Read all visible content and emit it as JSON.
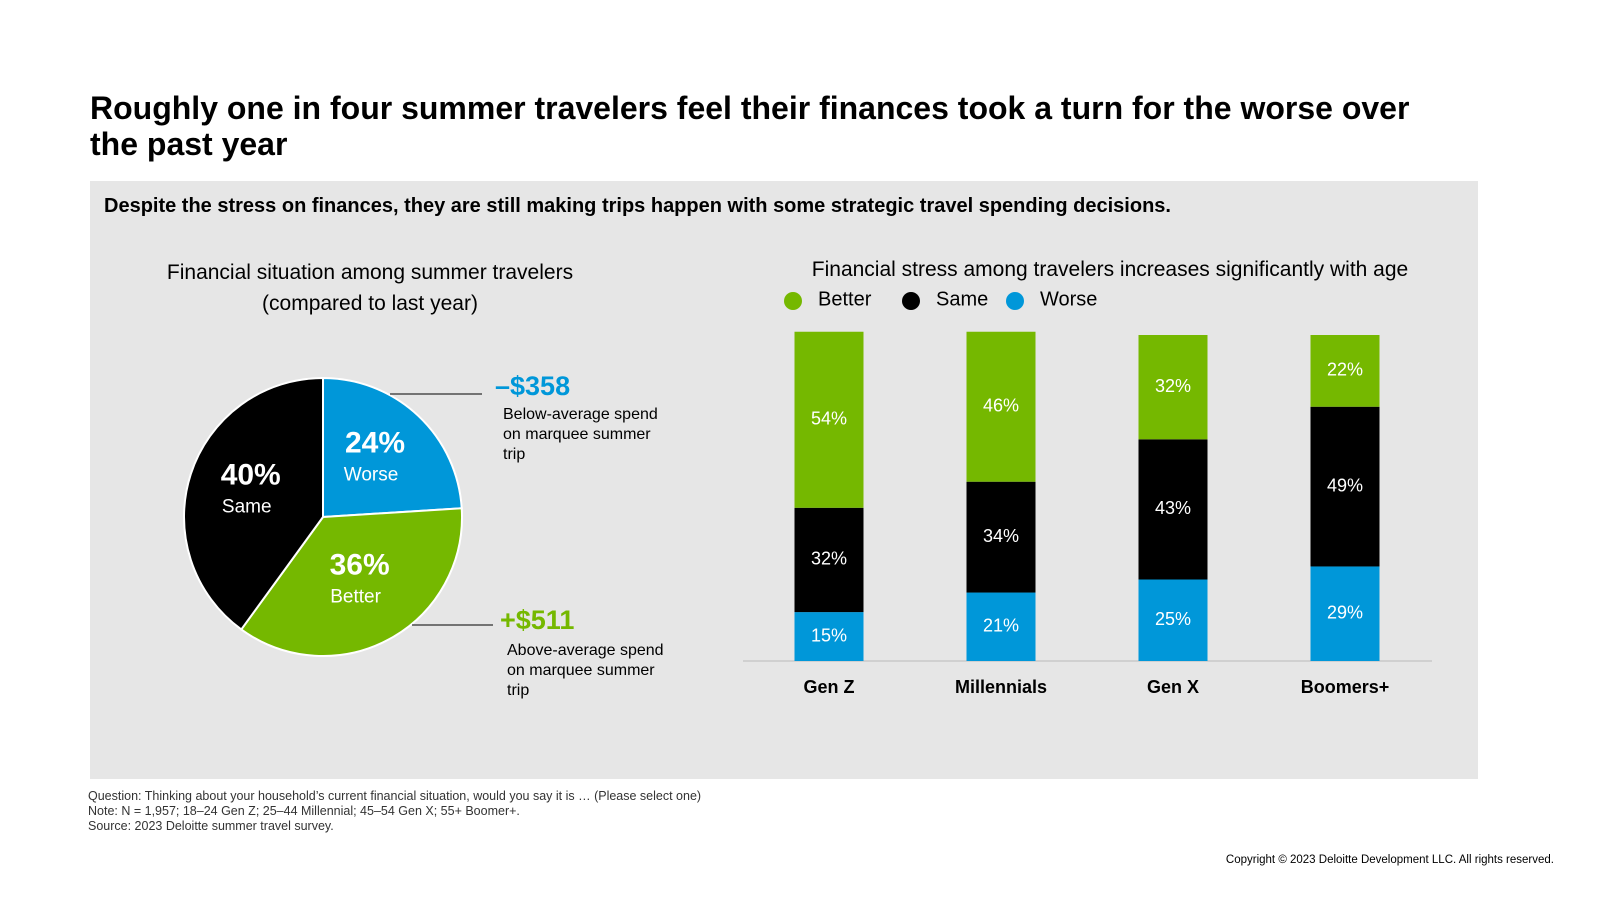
{
  "title": "Roughly one in four summer travelers feel their finances took a turn for the worse over the past year",
  "subtitle": "Despite the stress on finances, they are still making trips happen with some strategic travel spending decisions.",
  "chart_data": [
    {
      "type": "pie",
      "title": "Financial situation among summer travelers (compared to last year)",
      "categories": [
        "Worse",
        "Better",
        "Same"
      ],
      "values": [
        24,
        36,
        40
      ],
      "value_labels": [
        "24%",
        "36%",
        "40%"
      ],
      "colors": [
        "#0097d9",
        "#75b800",
        "#000000"
      ],
      "annotations": [
        {
          "label": "–$358",
          "text": "Below-average spend on marquee summer trip",
          "color": "#0097d9"
        },
        {
          "label": "+$511",
          "text": "Above-average spend on marquee summer trip",
          "color": "#75b800"
        }
      ]
    },
    {
      "type": "stacked-bar",
      "title": "Financial stress among travelers increases significantly with age",
      "categories": [
        "Gen Z",
        "Millennials",
        "Gen X",
        "Boomers+"
      ],
      "ylim": [
        0,
        100
      ],
      "series": [
        {
          "name": "Better",
          "color": "#75b800",
          "values": [
            54,
            46,
            32,
            22
          ],
          "value_labels": [
            "54%",
            "46%",
            "32%",
            "22%"
          ]
        },
        {
          "name": "Same",
          "color": "#000000",
          "values": [
            32,
            34,
            43,
            49
          ],
          "value_labels": [
            "32%",
            "34%",
            "43%",
            "49%"
          ]
        },
        {
          "name": "Worse",
          "color": "#0097d9",
          "values": [
            15,
            21,
            25,
            29
          ],
          "value_labels": [
            "15%",
            "21%",
            "25%",
            "29%"
          ]
        }
      ]
    }
  ],
  "notes": [
    "Question: Thinking about your household’s current financial situation, would you say it is … (Please select one)",
    "Note: N = 1,957; 18–24 Gen Z; 25–44 Millennial; 45–54 Gen X; 55+ Boomer+.",
    "Source: 2023 Deloitte summer travel survey."
  ],
  "copyright": "Copyright © 2023 Deloitte Development LLC. All rights reserved."
}
